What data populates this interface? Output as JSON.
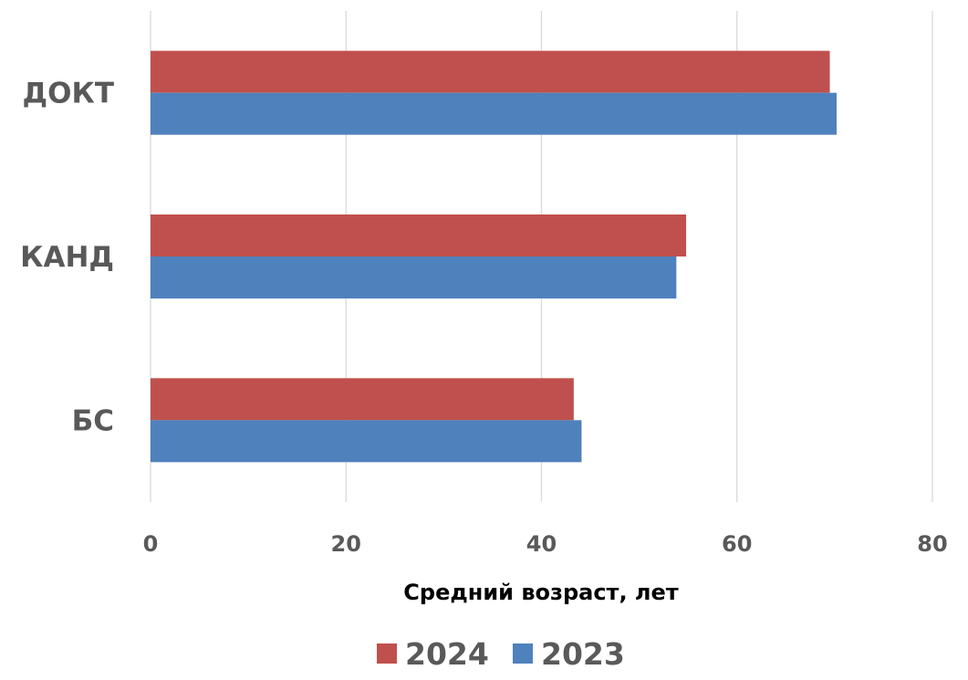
{
  "chart_data": {
    "type": "bar",
    "orientation": "horizontal",
    "categories": [
      "ДОКТ",
      "КАНД",
      "БС"
    ],
    "series": [
      {
        "name": "2024",
        "color": "#C0504D",
        "values": [
          69.5,
          54.8,
          43.3
        ]
      },
      {
        "name": "2023",
        "color": "#4F81BD",
        "values": [
          70.2,
          53.8,
          44.1
        ]
      }
    ],
    "xlabel": "Средний возраст, лет",
    "xlim": [
      0,
      80
    ],
    "xticks": [
      0,
      20,
      40,
      60,
      80
    ],
    "grid": true,
    "legend_position": "bottom"
  }
}
